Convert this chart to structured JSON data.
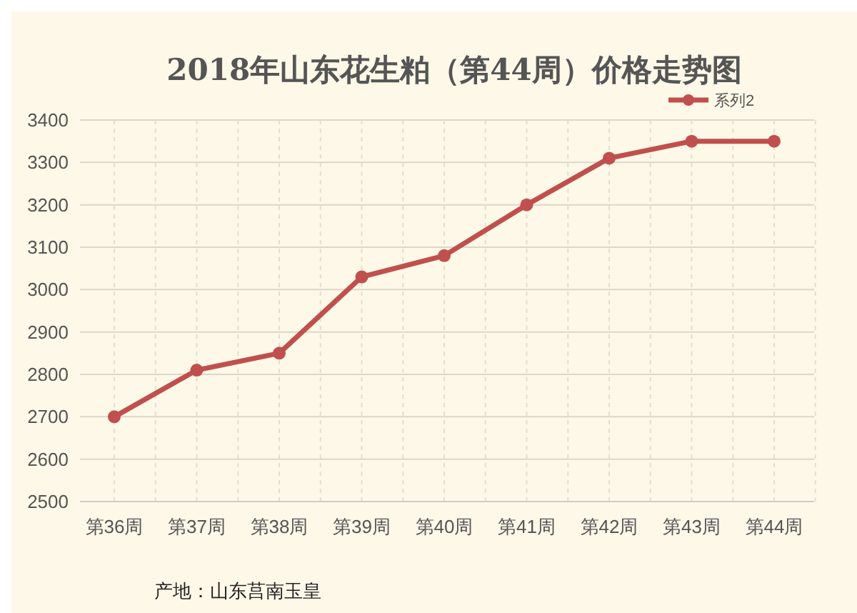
{
  "chart_data": {
    "type": "line",
    "title": "2018年山东花生粕（第44周）价格走势图",
    "categories": [
      "第36周",
      "第37周",
      "第38周",
      "第39周",
      "第40周",
      "第41周",
      "第42周",
      "第43周",
      "第44周"
    ],
    "series": [
      {
        "name": "系列2",
        "color": "#c0504d",
        "values": [
          2700,
          2810,
          2850,
          3030,
          3080,
          3200,
          3310,
          3350,
          3350
        ]
      }
    ],
    "ylim": [
      2500,
      3400
    ],
    "yticks": [
      2500,
      2600,
      2700,
      2800,
      2900,
      3000,
      3100,
      3200,
      3300,
      3400
    ],
    "grid": true,
    "legend": "top right",
    "marker": "circle",
    "line_style": "solid",
    "annotations": [
      "产地：山东莒南玉皇"
    ]
  }
}
